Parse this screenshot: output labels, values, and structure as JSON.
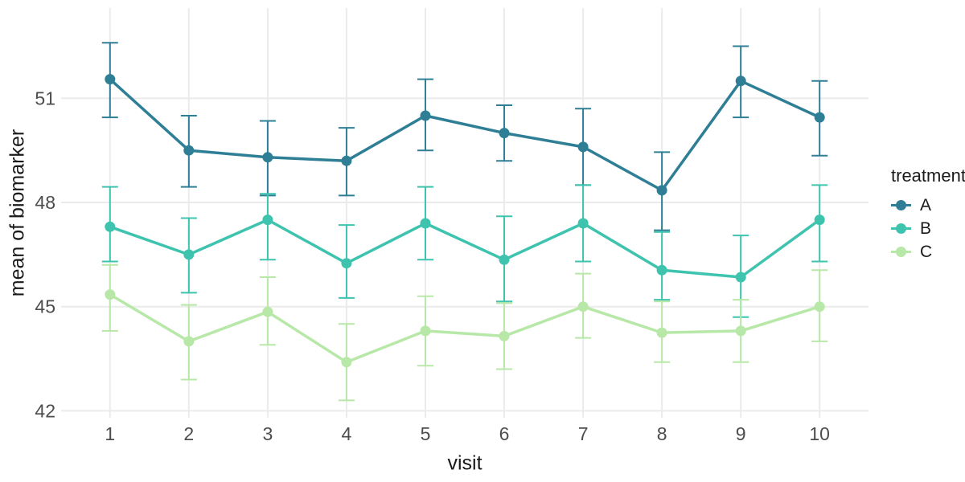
{
  "figure": {
    "background": "#ffffff",
    "grid_color": "#ebebeb",
    "tick_label_color": "#4d4d4d",
    "axis_title_color": "#1a1a1a"
  },
  "chart_data": {
    "type": "line",
    "title": "",
    "xlabel": "visit",
    "ylabel": "mean of biomarker",
    "legend_title": "treatment",
    "legend_position": "right",
    "grid": true,
    "error_bars": true,
    "x": [
      1,
      2,
      3,
      4,
      5,
      6,
      7,
      8,
      9,
      10
    ],
    "x_tick_labels": [
      "1",
      "2",
      "3",
      "4",
      "5",
      "6",
      "7",
      "8",
      "9",
      "10"
    ],
    "y_ticks": [
      42,
      45,
      48,
      51
    ],
    "y_tick_labels": [
      "42",
      "45",
      "48",
      "51"
    ],
    "xlim": [
      0.38,
      10.62
    ],
    "ylim": [
      41.8,
      53.6
    ],
    "series": [
      {
        "name": "A",
        "color": "#2e7f96",
        "values": [
          51.55,
          49.5,
          49.3,
          49.2,
          50.5,
          50.0,
          49.6,
          48.35,
          51.5,
          50.45
        ],
        "lower": [
          50.45,
          48.45,
          48.2,
          48.2,
          49.5,
          49.2,
          48.5,
          47.2,
          50.45,
          49.35
        ],
        "upper": [
          52.6,
          50.5,
          50.35,
          50.15,
          51.55,
          50.8,
          50.7,
          49.45,
          52.5,
          51.5
        ]
      },
      {
        "name": "B",
        "color": "#3ec3ae",
        "values": [
          47.3,
          46.5,
          47.5,
          46.25,
          47.4,
          46.35,
          47.4,
          46.05,
          45.85,
          47.5
        ],
        "lower": [
          46.3,
          45.4,
          46.35,
          45.25,
          46.35,
          45.15,
          46.3,
          45.2,
          44.7,
          46.3
        ],
        "upper": [
          48.45,
          47.55,
          48.25,
          47.35,
          48.45,
          47.6,
          48.5,
          47.15,
          47.05,
          48.5
        ]
      },
      {
        "name": "C",
        "color": "#b7e8a7",
        "values": [
          45.35,
          44.0,
          44.85,
          43.4,
          44.3,
          44.15,
          45.0,
          44.25,
          44.3,
          45.0
        ],
        "lower": [
          44.3,
          42.9,
          43.9,
          42.3,
          43.3,
          43.2,
          44.1,
          43.4,
          43.4,
          44.0
        ],
        "upper": [
          46.2,
          45.05,
          45.85,
          44.5,
          45.3,
          45.1,
          45.95,
          45.15,
          45.2,
          46.05
        ]
      }
    ]
  }
}
